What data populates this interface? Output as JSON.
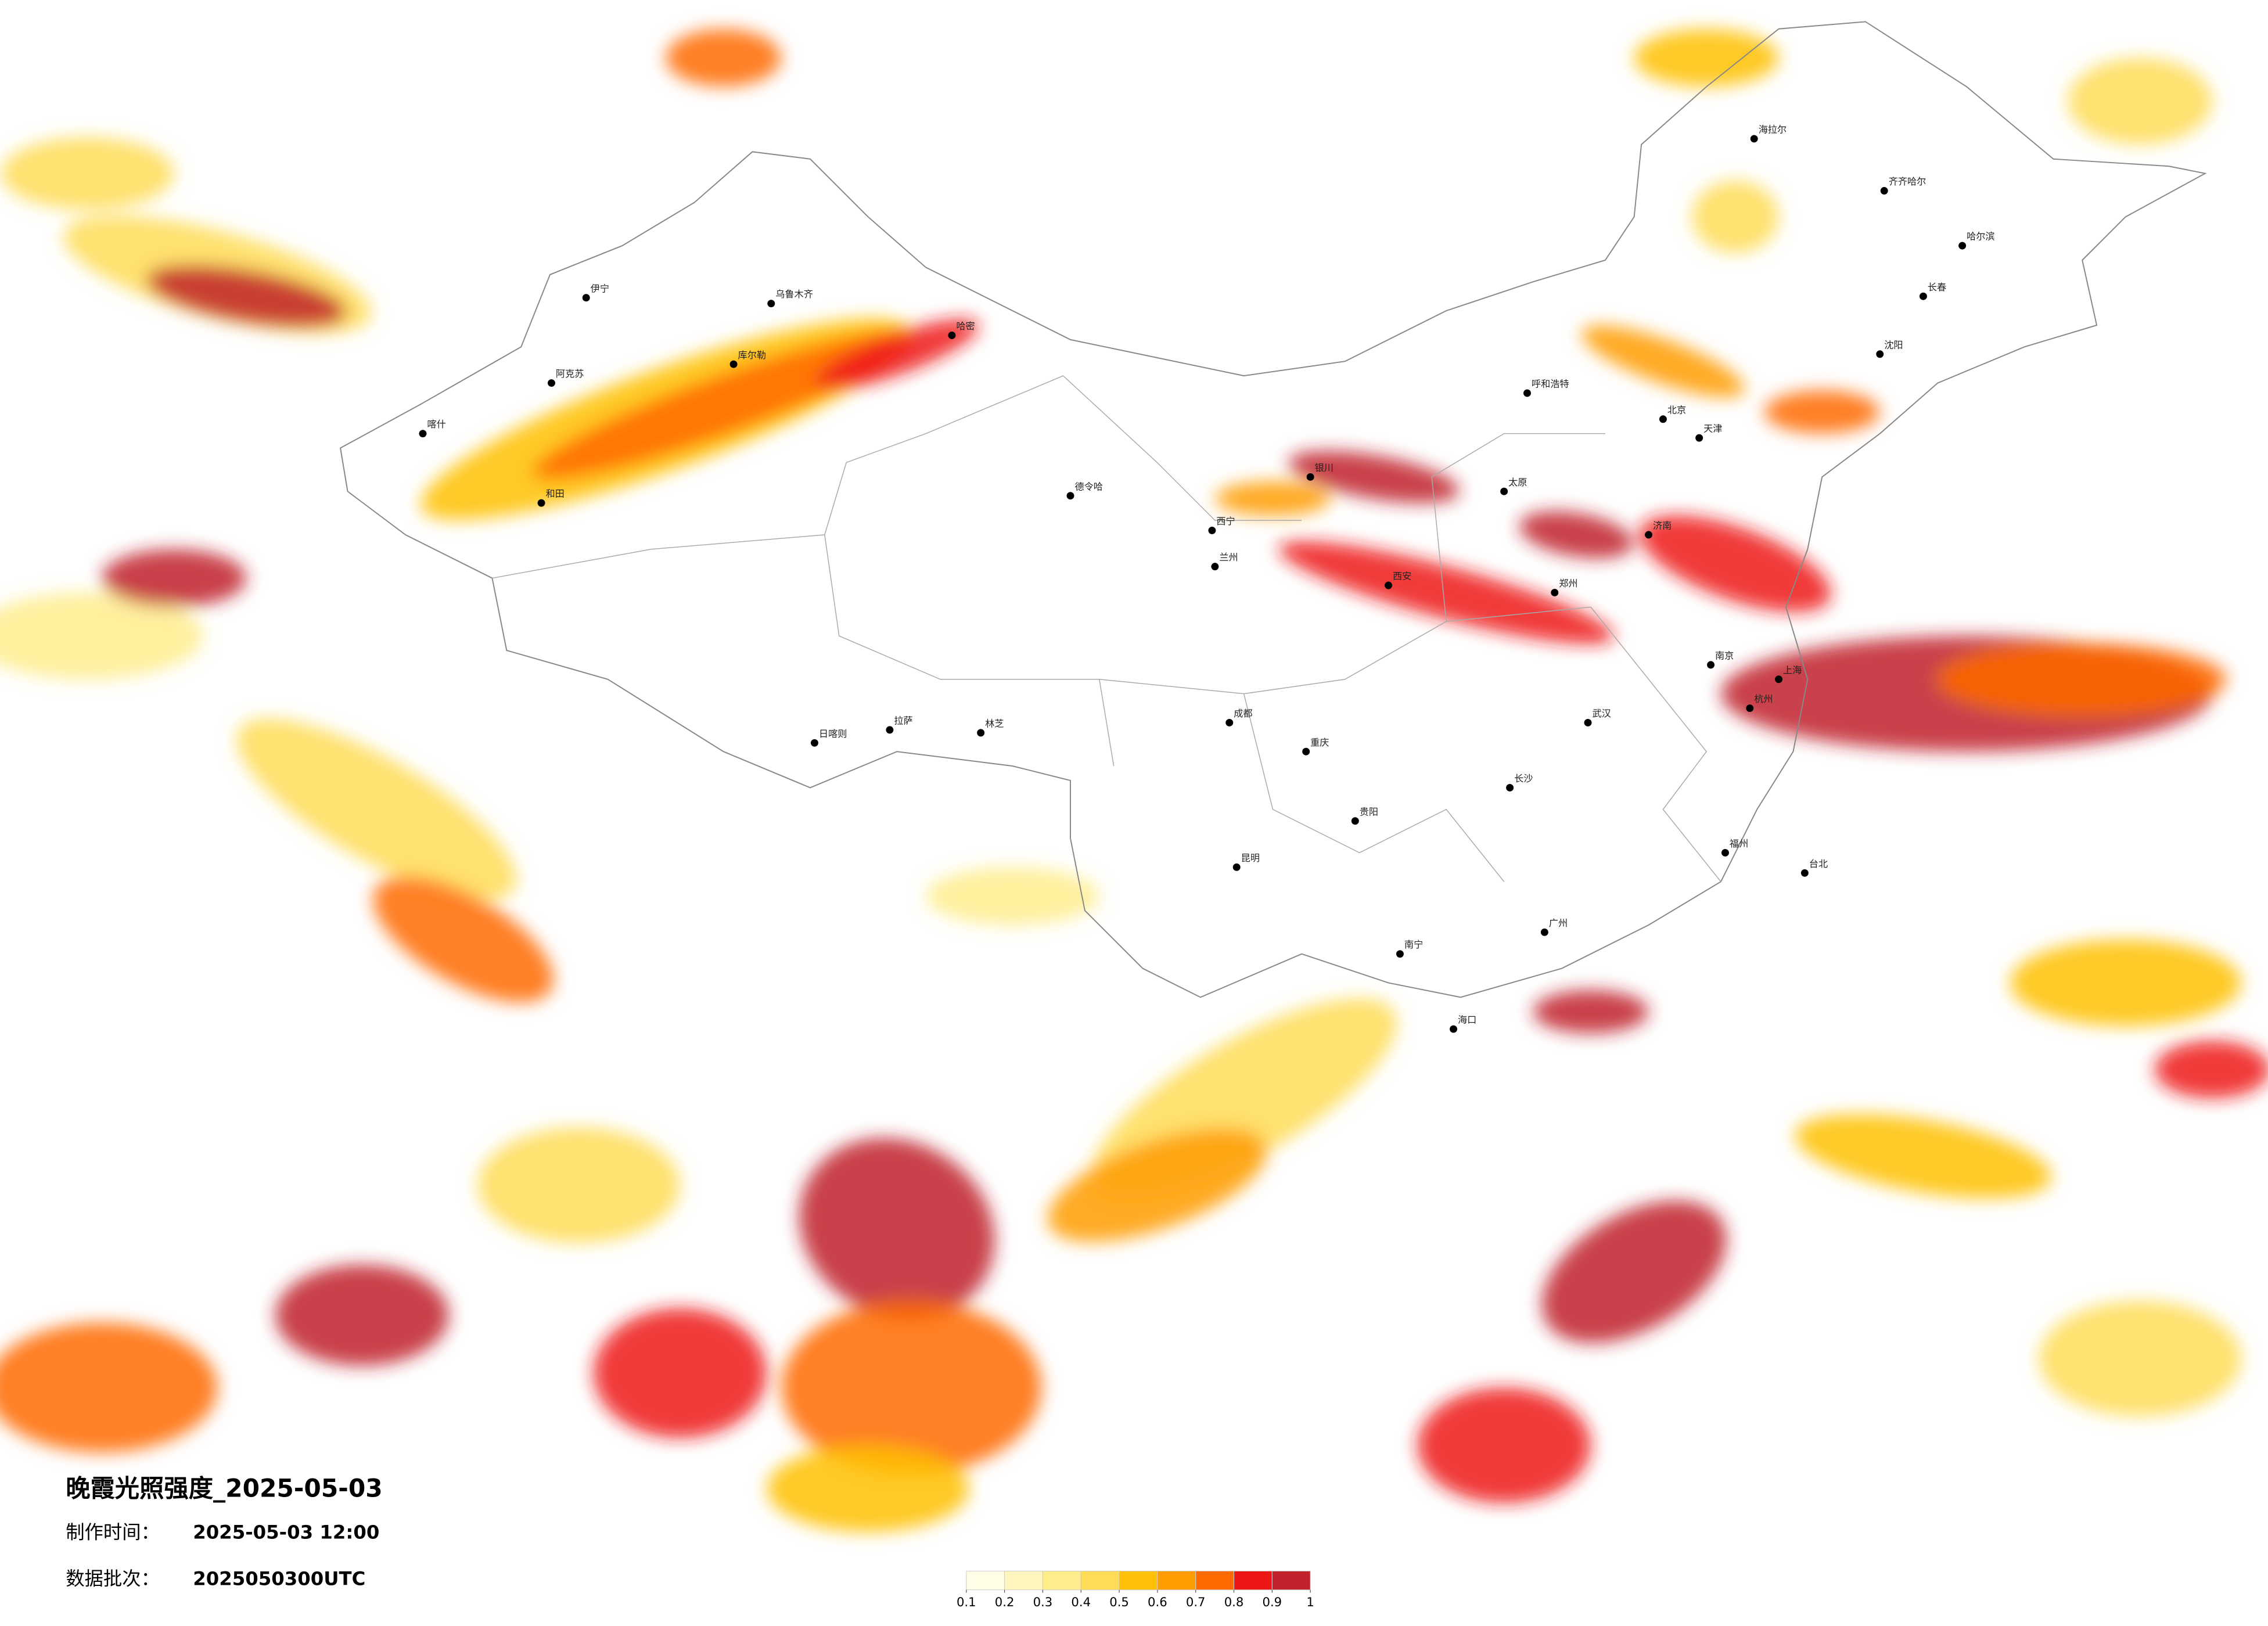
{
  "title": "晚霞光照强度_2025-05-03",
  "made_time": {
    "label": "制作时间：",
    "value": "2025-05-03 12:00"
  },
  "data_batch": {
    "label": "数据批次：",
    "value": "2025050300UTC"
  },
  "legend": {
    "ticks": [
      0.1,
      0.2,
      0.3,
      0.4,
      0.5,
      0.6,
      0.7,
      0.8,
      0.9,
      1
    ],
    "colors": [
      "#fffde6",
      "#fff6bf",
      "#ffed8c",
      "#ffdc55",
      "#ffc107",
      "#ff9c00",
      "#ff6a00",
      "#ef1616",
      "#c0222c"
    ]
  },
  "cities": [
    "喀什",
    "阿克苏",
    "伊宁",
    "乌鲁木齐",
    "库尔勒",
    "哈密",
    "和田",
    "德令哈",
    "日喀则",
    "拉萨",
    "林芝",
    "西宁",
    "银川",
    "成都",
    "重庆",
    "昆明",
    "贵阳",
    "南宁",
    "广州",
    "长沙",
    "武汉",
    "西安",
    "郑州",
    "北京",
    "天津",
    "上海",
    "南京",
    "杭州",
    "福州",
    "台北",
    "哈尔滨",
    "长春",
    "沈阳",
    "呼和浩特",
    "海口",
    "齐齐哈尔",
    "海拉尔",
    "济南",
    "太原",
    "兰州"
  ]
}
